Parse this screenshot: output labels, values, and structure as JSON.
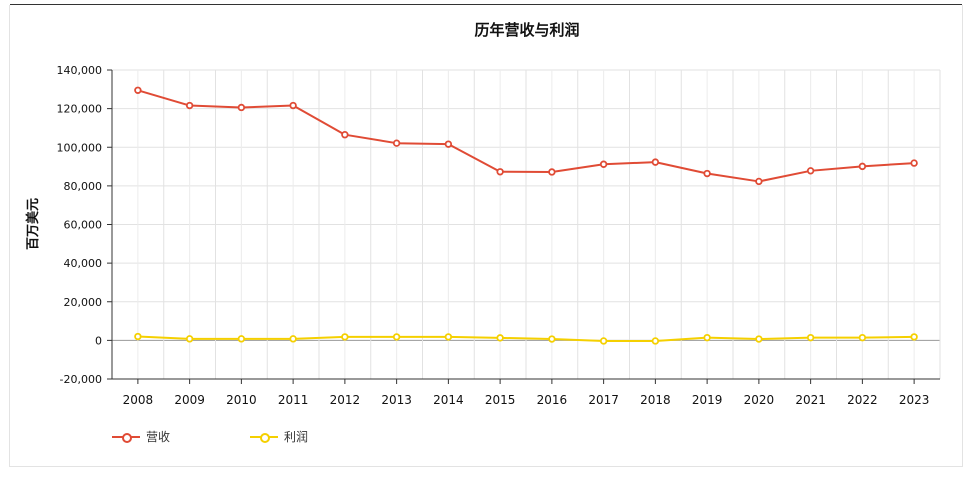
{
  "chart_data": {
    "type": "line",
    "title": "历年营收与利润",
    "ylabel": "百万美元",
    "xlabel": "",
    "categories": [
      "2008",
      "2009",
      "2010",
      "2011",
      "2012",
      "2013",
      "2014",
      "2015",
      "2016",
      "2017",
      "2018",
      "2019",
      "2020",
      "2021",
      "2022",
      "2023"
    ],
    "ylim": [
      -20000,
      140000
    ],
    "yticks": [
      -20000,
      0,
      20000,
      40000,
      60000,
      80000,
      100000,
      120000,
      140000
    ],
    "ytick_labels": [
      "-20,000",
      "0",
      "20,000",
      "40,000",
      "60,000",
      "80,000",
      "100,000",
      "120,000",
      "140,000"
    ],
    "grid": true,
    "legend_position": "bottom-left",
    "series": [
      {
        "name": "营收",
        "color": "#e04b35",
        "values": [
          129500,
          121600,
          120600,
          121600,
          106500,
          102100,
          101600,
          87300,
          87200,
          91200,
          92300,
          86400,
          82300,
          87800,
          90100,
          91800
        ]
      },
      {
        "name": "利润",
        "color": "#f5d000",
        "values": [
          2000,
          800,
          800,
          800,
          1800,
          1800,
          1800,
          1300,
          700,
          -300,
          -300,
          1400,
          700,
          1400,
          1400,
          1800
        ]
      }
    ]
  }
}
